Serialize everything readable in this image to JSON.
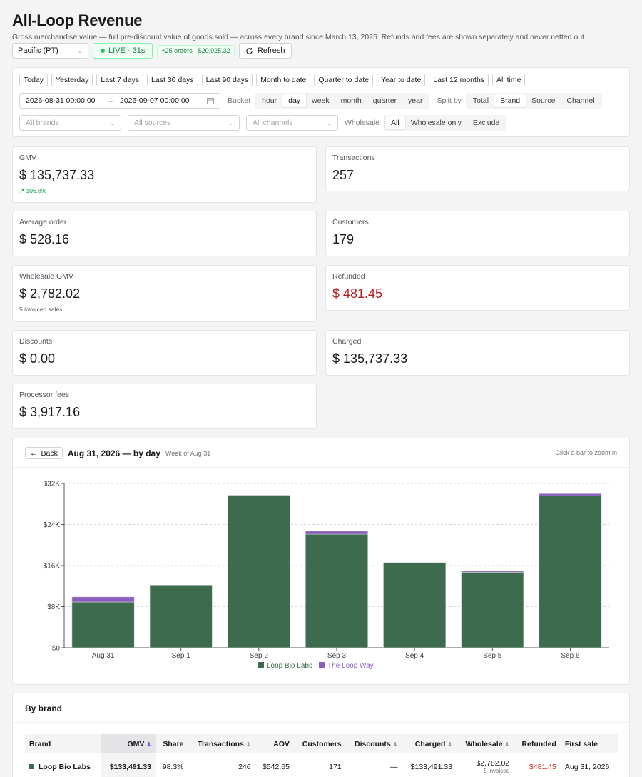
{
  "header": {
    "title": "All-Loop Revenue",
    "subtitle": "Gross merchandise value — full pre-discount value of goods sold — across every brand since March 13, 2025. Refunds and fees are shown separately and never netted out."
  },
  "toolbar": {
    "timezone": "Pacific (PT)",
    "live": "LIVE · 31s",
    "new_orders": "+25 orders · $20,925.32",
    "refresh": "Refresh"
  },
  "filters": {
    "presets": [
      "Today",
      "Yesterday",
      "Last 7 days",
      "Last 30 days",
      "Last 90 days",
      "Month to date",
      "Quarter to date",
      "Year to date",
      "Last 12 months",
      "All time"
    ],
    "date_from": "2026-08-31 00:00:00",
    "date_sep": "→",
    "date_to": "2026-09-07 00:00:00",
    "bucket_label": "Bucket",
    "buckets": [
      "hour",
      "day",
      "week",
      "month",
      "quarter",
      "year"
    ],
    "bucket_active": "day",
    "split_label": "Split by",
    "splits": [
      "Total",
      "Brand",
      "Source",
      "Channel"
    ],
    "split_active": "Brand",
    "brands_placeholder": "All brands",
    "sources_placeholder": "All sources",
    "channels_placeholder": "All channels",
    "wholesale_label": "Wholesale",
    "wholesale_opts": [
      "All",
      "Wholesale only",
      "Exclude"
    ],
    "wholesale_active": "All"
  },
  "metrics": {
    "gmv": {
      "label": "GMV",
      "value": "$ 135,737.33",
      "sub": "106.8%"
    },
    "transactions": {
      "label": "Transactions",
      "value": "257"
    },
    "aov": {
      "label": "Average order",
      "value": "$ 528.16"
    },
    "customers": {
      "label": "Customers",
      "value": "179"
    },
    "wholesale": {
      "label": "Wholesale GMV",
      "value": "$ 2,782.02",
      "sub": "5 invoiced sales"
    },
    "refunded": {
      "label": "Refunded",
      "value": "$ 481.45"
    },
    "discounts": {
      "label": "Discounts",
      "value": "$ 0.00"
    },
    "charged": {
      "label": "Charged",
      "value": "$ 135,737.33"
    },
    "fees": {
      "label": "Processor fees",
      "value": "$ 3,917.16"
    }
  },
  "chart_panel": {
    "back": "Back",
    "title": "Aug 31, 2026 — by day",
    "subtitle": "Week of Aug 31",
    "hint": "Click a bar to zoom in"
  },
  "chart_data": {
    "type": "bar",
    "stacked": true,
    "categories": [
      "Aug 31",
      "Sep 1",
      "Sep 2",
      "Sep 3",
      "Sep 4",
      "Sep 5",
      "Sep 6"
    ],
    "series": [
      {
        "name": "Loop Bio Labs",
        "color": "#3d6b4d",
        "values": [
          8900,
          12200,
          29700,
          22100,
          16600,
          14700,
          29600
        ]
      },
      {
        "name": "The Loop Way",
        "color": "#8b5fbf",
        "values": [
          1000,
          0,
          0,
          600,
          0,
          200,
          400
        ]
      }
    ],
    "yticks": [
      "$0",
      "$8K",
      "$16K",
      "$24K",
      "$32K"
    ],
    "ylim": [
      0,
      32000
    ],
    "grid": true,
    "legend": "bottom"
  },
  "brand_table": {
    "title": "By brand",
    "columns": [
      "Brand",
      "GMV",
      "Share",
      "Transactions",
      "AOV",
      "Customers",
      "Discounts",
      "Charged",
      "Wholesale",
      "Refunded",
      "First sale"
    ],
    "rows": [
      {
        "brand": "Loop Bio Labs",
        "color": "#3d6b4d",
        "gmv": "$133,491.33",
        "share": "98.3%",
        "transactions": "246",
        "aov": "$542.65",
        "customers": "171",
        "discounts": "—",
        "charged": "$133,491.33",
        "wholesale": "$2,782.02",
        "wholesale_sub": "5 invoiced",
        "refunded": "$481.45",
        "first_sale": "Aug 31, 2026"
      }
    ]
  }
}
